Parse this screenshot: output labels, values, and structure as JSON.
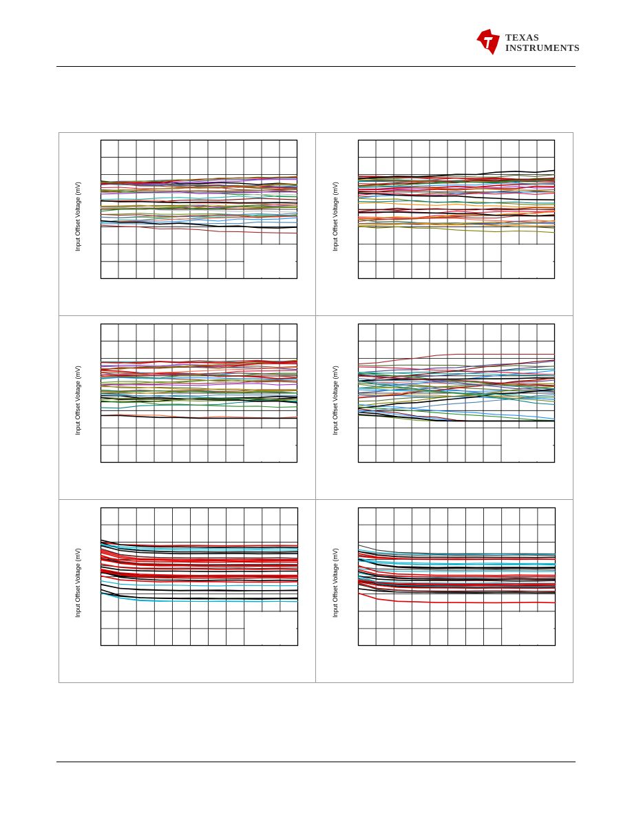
{
  "header": {
    "brand_line1": "TEXAS",
    "brand_line2": "INSTRUMENTS"
  },
  "colors": {
    "brand_red": "#cc0000"
  },
  "chart_data": [
    {
      "type": "line",
      "ylabel": "Input Offset Voltage (mV)",
      "series_count": 40,
      "palette": "mixed",
      "trend": "flat",
      "start_spread": [
        0.28,
        0.62
      ],
      "style": "drifting"
    },
    {
      "type": "line",
      "ylabel": "Input Offset Voltage (mV)",
      "series_count": 40,
      "palette": "mixed",
      "trend": "flat",
      "start_spread": [
        0.26,
        0.63
      ],
      "style": "drifting"
    },
    {
      "type": "line",
      "ylabel": "Input Offset Voltage (mV)",
      "series_count": 40,
      "palette": "mixed",
      "trend": "flat",
      "start_spread": [
        0.26,
        0.66
      ],
      "style": "drifting"
    },
    {
      "type": "line",
      "ylabel": "Input Offset Voltage (mV)",
      "series_count": 40,
      "palette": "mixed",
      "trend": "crossing",
      "start_spread": [
        0.26,
        0.66
      ],
      "style": "crossing"
    },
    {
      "type": "line",
      "ylabel": "Input Offset Voltage (mV)",
      "series_count": 36,
      "palette": "rbc",
      "trend": "decaying",
      "start_spread": [
        0.23,
        0.65
      ],
      "style": "decay"
    },
    {
      "type": "line",
      "ylabel": "Input Offset Voltage (mV)",
      "series_count": 36,
      "palette": "rbc",
      "trend": "decaying",
      "start_spread": [
        0.27,
        0.62
      ],
      "style": "decay"
    }
  ]
}
